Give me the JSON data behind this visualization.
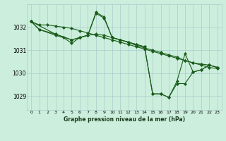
{
  "title": "Graphe pression niveau de la mer (hPa)",
  "bg_color": "#cceedd",
  "grid_color": "#aacccc",
  "line_color": "#1a5c1a",
  "xlim": [
    -0.5,
    23.5
  ],
  "ylim": [
    1028.4,
    1033.0
  ],
  "yticks": [
    1029,
    1030,
    1031,
    1032
  ],
  "series1": {
    "x": [
      0,
      1,
      2,
      3,
      4,
      5,
      6,
      7,
      8,
      9,
      10,
      11,
      12,
      13,
      14,
      15,
      16,
      17,
      18,
      19,
      20,
      21,
      22,
      23
    ],
    "y": [
      1032.25,
      1032.1,
      1032.1,
      1032.05,
      1032.0,
      1031.95,
      1031.85,
      1031.75,
      1031.65,
      1031.55,
      1031.45,
      1031.35,
      1031.25,
      1031.15,
      1031.05,
      1030.95,
      1030.85,
      1030.75,
      1030.65,
      1030.55,
      1030.45,
      1030.35,
      1030.25,
      1030.2
    ]
  },
  "series2": {
    "x": [
      0,
      1,
      3,
      4,
      5,
      6,
      7,
      8,
      9,
      10,
      11,
      12,
      13,
      14,
      15,
      16,
      17,
      18,
      19,
      20,
      21,
      22,
      23
    ],
    "y": [
      1032.25,
      1031.9,
      1031.65,
      1031.55,
      1031.3,
      1031.55,
      1031.65,
      1031.7,
      1031.65,
      1031.55,
      1031.45,
      1031.35,
      1031.2,
      1031.1,
      1031.0,
      1030.9,
      1030.8,
      1030.7,
      1030.55,
      1030.45,
      1030.4,
      1030.35,
      1030.25
    ]
  },
  "series3": {
    "x": [
      0,
      3,
      5,
      6,
      7,
      8,
      9,
      10,
      11,
      12,
      13,
      14,
      15,
      16,
      17,
      18,
      19,
      20,
      21,
      22,
      23
    ],
    "y": [
      1032.25,
      1031.7,
      1031.45,
      1031.55,
      1031.65,
      1032.65,
      1032.45,
      1031.55,
      1031.45,
      1031.35,
      1031.25,
      1031.15,
      1029.1,
      1029.1,
      1028.95,
      1029.65,
      1030.85,
      1030.05,
      1030.15,
      1030.35,
      1030.25
    ]
  },
  "series4": {
    "x": [
      0,
      1,
      3,
      5,
      6,
      7,
      8,
      9,
      10,
      11,
      12,
      13,
      14,
      15,
      16,
      17,
      18,
      19,
      20,
      21,
      22,
      23
    ],
    "y": [
      1032.25,
      1031.9,
      1031.7,
      1031.45,
      1031.55,
      1031.65,
      1032.6,
      1032.4,
      1031.55,
      1031.45,
      1031.35,
      1031.25,
      1031.15,
      1029.1,
      1029.1,
      1028.95,
      1029.55,
      1029.55,
      1030.05,
      1030.15,
      1030.35,
      1030.25
    ]
  }
}
